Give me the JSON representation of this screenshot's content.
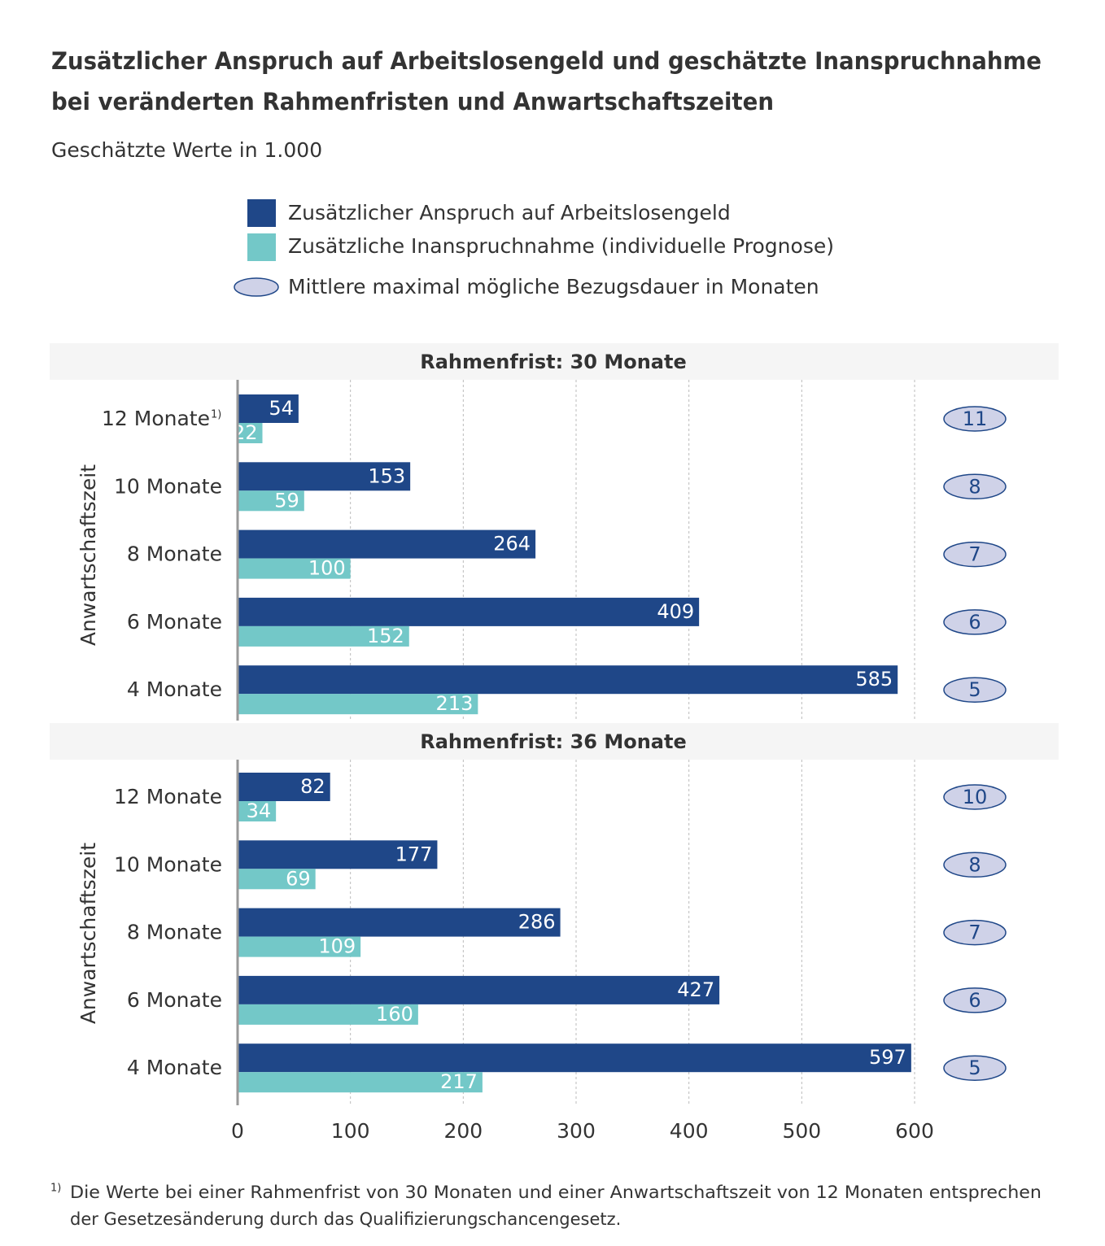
{
  "title": [
    "Zusätzlicher Anspruch auf Arbeitslosengeld und geschätzte Inanspruchnahme",
    "bei veränderten Rahmenfristen und Anwartschaftszeiten"
  ],
  "subtitle": "Geschätzte Werte in 1.000",
  "footnote": {
    "marker": "1)",
    "lines": [
      "Die  Werte bei einer Rahmenfrist von 30 Monaten und einer Anwartschaftszeit von 12 Monaten entsprechen",
      "der Gesetzesänderung durch das Qualifizierungschancengesetz."
    ]
  },
  "chart_data": [
    {
      "type": "bar",
      "orientation": "horizontal",
      "panel_title": "Rahmenfrist: 30 Monate",
      "y_label": "Anwartschaftszeit",
      "categories": [
        "12 Monate",
        "10 Monate",
        "8 Monate",
        "6 Monate",
        "4 Monate"
      ],
      "category_note": "1)",
      "series": [
        {
          "name": "Zusätzlicher Anspruch auf  Arbeitslosengeld",
          "color": "#1f4788",
          "values": [
            54,
            153,
            264,
            409,
            585
          ]
        },
        {
          "name": "Zusätzliche Inanspruchnahme (individuelle Prognose)",
          "color": "#73c8c8",
          "values": [
            22,
            59,
            100,
            152,
            213
          ]
        }
      ],
      "durations": {
        "name": "Mittlere maximal mögliche Bezugsdauer in Monaten",
        "color": "#cfd2e8",
        "values": [
          11,
          8,
          7,
          6,
          5
        ]
      },
      "xlim": [
        0,
        600
      ],
      "xticks": [
        0,
        100,
        200,
        300,
        400,
        500,
        600
      ],
      "grid": true
    },
    {
      "type": "bar",
      "orientation": "horizontal",
      "panel_title": "Rahmenfrist: 36 Monate",
      "y_label": "Anwartschaftszeit",
      "categories": [
        "12 Monate",
        "10 Monate",
        "8 Monate",
        "6 Monate",
        "4 Monate"
      ],
      "series": [
        {
          "color": "#1f4788",
          "values": [
            82,
            177,
            286,
            427,
            597
          ]
        },
        {
          "color": "#73c8c8",
          "values": [
            34,
            69,
            109,
            160,
            217
          ]
        }
      ],
      "durations": {
        "color": "#cfd2e8",
        "values": [
          10,
          8,
          7,
          6,
          5
        ]
      },
      "xlim": [
        0,
        600
      ],
      "xticks": [
        0,
        100,
        200,
        300,
        400,
        500,
        600
      ],
      "grid": true
    }
  ]
}
